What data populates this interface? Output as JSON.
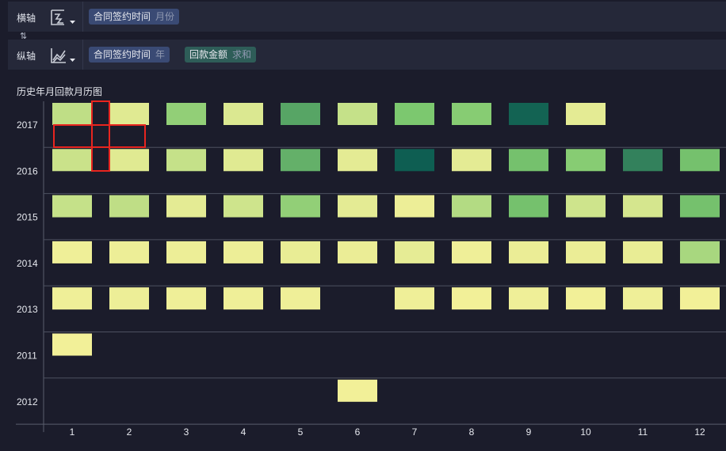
{
  "x_axis_bar": {
    "label": "横轴",
    "fields": [
      {
        "name": "合同签约时间",
        "agg": "月份"
      }
    ]
  },
  "y_axis_bar": {
    "label": "纵轴",
    "fields": [
      {
        "name": "合同签约时间",
        "agg": "年"
      },
      {
        "name": "回款金额",
        "agg": "求和"
      }
    ]
  },
  "swap_icon": "swap-axes-icon",
  "chart_data": {
    "type": "heatmap",
    "title": "历史年月回款月历图",
    "xlabel": "",
    "ylabel": "",
    "x": [
      "1",
      "2",
      "3",
      "4",
      "5",
      "6",
      "7",
      "8",
      "9",
      "10",
      "11",
      "12"
    ],
    "y": [
      "2017",
      "2016",
      "2015",
      "2014",
      "2013",
      "2011",
      "2012"
    ],
    "color_scale": [
      "#f6f19a",
      "#0e5e52"
    ],
    "cells": [
      {
        "year": "2017",
        "month": "1",
        "level": 0.25
      },
      {
        "year": "2017",
        "month": "2",
        "level": 0.1
      },
      {
        "year": "2017",
        "month": "3",
        "level": 0.45
      },
      {
        "year": "2017",
        "month": "4",
        "level": 0.12
      },
      {
        "year": "2017",
        "month": "5",
        "level": 0.7
      },
      {
        "year": "2017",
        "month": "6",
        "level": 0.22
      },
      {
        "year": "2017",
        "month": "7",
        "level": 0.55
      },
      {
        "year": "2017",
        "month": "8",
        "level": 0.5
      },
      {
        "year": "2017",
        "month": "9",
        "level": 0.98
      },
      {
        "year": "2017",
        "month": "10",
        "level": 0.08
      },
      {
        "year": "2016",
        "month": "1",
        "level": 0.2
      },
      {
        "year": "2016",
        "month": "2",
        "level": 0.1
      },
      {
        "year": "2016",
        "month": "3",
        "level": 0.22
      },
      {
        "year": "2016",
        "month": "4",
        "level": 0.1
      },
      {
        "year": "2016",
        "month": "5",
        "level": 0.65
      },
      {
        "year": "2016",
        "month": "6",
        "level": 0.08
      },
      {
        "year": "2016",
        "month": "7",
        "level": 1.0
      },
      {
        "year": "2016",
        "month": "8",
        "level": 0.08
      },
      {
        "year": "2016",
        "month": "9",
        "level": 0.58
      },
      {
        "year": "2016",
        "month": "10",
        "level": 0.5
      },
      {
        "year": "2016",
        "month": "11",
        "level": 0.85
      },
      {
        "year": "2016",
        "month": "12",
        "level": 0.58
      },
      {
        "year": "2015",
        "month": "1",
        "level": 0.22
      },
      {
        "year": "2015",
        "month": "2",
        "level": 0.25
      },
      {
        "year": "2015",
        "month": "3",
        "level": 0.08
      },
      {
        "year": "2015",
        "month": "4",
        "level": 0.18
      },
      {
        "year": "2015",
        "month": "5",
        "level": 0.45
      },
      {
        "year": "2015",
        "month": "6",
        "level": 0.08
      },
      {
        "year": "2015",
        "month": "7",
        "level": 0.04
      },
      {
        "year": "2015",
        "month": "8",
        "level": 0.3
      },
      {
        "year": "2015",
        "month": "9",
        "level": 0.58
      },
      {
        "year": "2015",
        "month": "10",
        "level": 0.18
      },
      {
        "year": "2015",
        "month": "11",
        "level": 0.15
      },
      {
        "year": "2015",
        "month": "12",
        "level": 0.58
      },
      {
        "year": "2014",
        "month": "1",
        "level": 0.03
      },
      {
        "year": "2014",
        "month": "2",
        "level": 0.04
      },
      {
        "year": "2014",
        "month": "3",
        "level": 0.04
      },
      {
        "year": "2014",
        "month": "4",
        "level": 0.04
      },
      {
        "year": "2014",
        "month": "5",
        "level": 0.06
      },
      {
        "year": "2014",
        "month": "6",
        "level": 0.05
      },
      {
        "year": "2014",
        "month": "7",
        "level": 0.07
      },
      {
        "year": "2014",
        "month": "8",
        "level": 0.03
      },
      {
        "year": "2014",
        "month": "9",
        "level": 0.05
      },
      {
        "year": "2014",
        "month": "10",
        "level": 0.05
      },
      {
        "year": "2014",
        "month": "11",
        "level": 0.06
      },
      {
        "year": "2014",
        "month": "12",
        "level": 0.35
      },
      {
        "year": "2013",
        "month": "1",
        "level": 0.03
      },
      {
        "year": "2013",
        "month": "2",
        "level": 0.04
      },
      {
        "year": "2013",
        "month": "3",
        "level": 0.03
      },
      {
        "year": "2013",
        "month": "4",
        "level": 0.03
      },
      {
        "year": "2013",
        "month": "5",
        "level": 0.03
      },
      {
        "year": "2013",
        "month": "7",
        "level": 0.03
      },
      {
        "year": "2013",
        "month": "8",
        "level": 0.02
      },
      {
        "year": "2013",
        "month": "9",
        "level": 0.03
      },
      {
        "year": "2013",
        "month": "10",
        "level": 0.02
      },
      {
        "year": "2013",
        "month": "11",
        "level": 0.03
      },
      {
        "year": "2013",
        "month": "12",
        "level": 0.02
      },
      {
        "year": "2011",
        "month": "1",
        "level": 0.02
      },
      {
        "year": "2012",
        "month": "6",
        "level": 0.02
      }
    ],
    "grid": true,
    "highlight": {
      "year": "2016",
      "month": "1.5",
      "color": "#e8251f"
    }
  }
}
